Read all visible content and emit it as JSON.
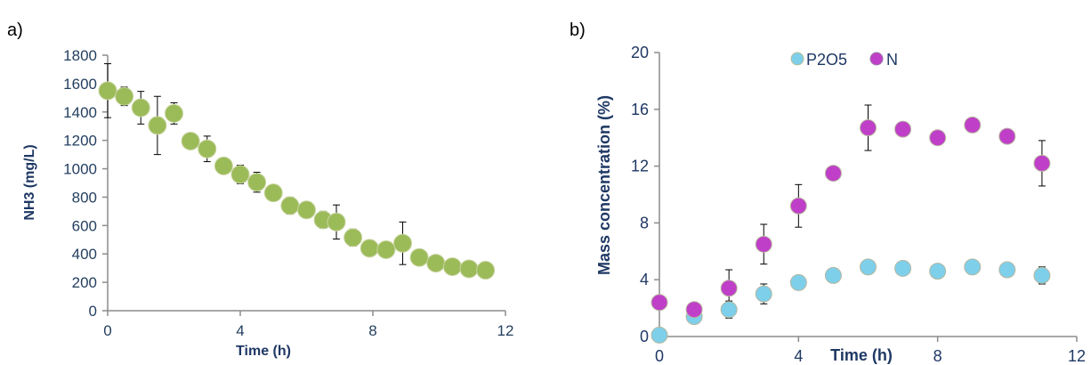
{
  "chart_data": [
    {
      "panel": "a)",
      "type": "scatter",
      "xlabel": "Time (h)",
      "ylabel": "NH3 (mg/L)",
      "xlim": [
        0,
        12
      ],
      "ylim": [
        0,
        1800
      ],
      "xticks": [
        "0",
        "4",
        "8",
        "12"
      ],
      "yticks": [
        "0",
        "200",
        "400",
        "600",
        "800",
        "1000",
        "1200",
        "1400",
        "1600",
        "1800"
      ],
      "grid": false,
      "series": [
        {
          "color": "#9bbb59",
          "points": [
            {
              "x": 0,
              "y": 1550,
              "err": 190
            },
            {
              "x": 0.5,
              "y": 1510,
              "err": 65
            },
            {
              "x": 1,
              "y": 1430,
              "err": 115
            },
            {
              "x": 1.5,
              "y": 1305,
              "err": 205
            },
            {
              "x": 2,
              "y": 1390,
              "err": 75
            },
            {
              "x": 2.5,
              "y": 1195,
              "err": 0
            },
            {
              "x": 3,
              "y": 1140,
              "err": 90
            },
            {
              "x": 3.5,
              "y": 1020,
              "err": 55
            },
            {
              "x": 4,
              "y": 960,
              "err": 65
            },
            {
              "x": 4.5,
              "y": 905,
              "err": 70
            },
            {
              "x": 5,
              "y": 830,
              "err": 35
            },
            {
              "x": 5.5,
              "y": 740,
              "err": 60
            },
            {
              "x": 6,
              "y": 710,
              "err": 0
            },
            {
              "x": 6.5,
              "y": 640,
              "err": 60
            },
            {
              "x": 6.9,
              "y": 625,
              "err": 120
            },
            {
              "x": 7.4,
              "y": 515,
              "err": 60
            },
            {
              "x": 7.9,
              "y": 440,
              "err": 0
            },
            {
              "x": 8.4,
              "y": 430,
              "err": 40
            },
            {
              "x": 8.9,
              "y": 475,
              "err": 150
            },
            {
              "x": 9.4,
              "y": 375,
              "err": 40
            },
            {
              "x": 9.9,
              "y": 335,
              "err": 0
            },
            {
              "x": 10.4,
              "y": 310,
              "err": 0
            },
            {
              "x": 10.9,
              "y": 295,
              "err": 0
            },
            {
              "x": 11.4,
              "y": 285,
              "err": 0
            }
          ]
        }
      ]
    },
    {
      "panel": "b)",
      "type": "scatter",
      "xlabel": "Time (h)",
      "ylabel": "Mass concentration (%)",
      "xlim": [
        0,
        12
      ],
      "ylim": [
        0,
        20
      ],
      "xticks": [
        "0",
        "4",
        "8",
        "12"
      ],
      "yticks": [
        "0",
        "4",
        "8",
        "12",
        "16",
        "20"
      ],
      "grid": false,
      "legend": "top",
      "series": [
        {
          "name": "P2O5",
          "color": "#7ecfea",
          "points": [
            {
              "x": 0,
              "y": 0.1,
              "err": 0
            },
            {
              "x": 1,
              "y": 1.4,
              "err": 0
            },
            {
              "x": 2,
              "y": 1.9,
              "err": 0.6
            },
            {
              "x": 3,
              "y": 3.0,
              "err": 0.7
            },
            {
              "x": 4,
              "y": 3.8,
              "err": 0
            },
            {
              "x": 5,
              "y": 4.3,
              "err": 0
            },
            {
              "x": 6,
              "y": 4.9,
              "err": 0
            },
            {
              "x": 7,
              "y": 4.8,
              "err": 0
            },
            {
              "x": 8,
              "y": 4.6,
              "err": 0
            },
            {
              "x": 9,
              "y": 4.9,
              "err": 0
            },
            {
              "x": 10,
              "y": 4.7,
              "err": 0
            },
            {
              "x": 11,
              "y": 4.3,
              "err": 0.6
            }
          ]
        },
        {
          "name": "N",
          "color": "#c03fc8",
          "points": [
            {
              "x": 0,
              "y": 2.4,
              "err": 0
            },
            {
              "x": 1,
              "y": 1.9,
              "err": 0
            },
            {
              "x": 2,
              "y": 3.4,
              "err": 1.3
            },
            {
              "x": 3,
              "y": 6.5,
              "err": 1.4
            },
            {
              "x": 4,
              "y": 9.2,
              "err": 1.5
            },
            {
              "x": 5,
              "y": 11.5,
              "err": 0
            },
            {
              "x": 6,
              "y": 14.7,
              "err": 1.6
            },
            {
              "x": 7,
              "y": 14.6,
              "err": 0
            },
            {
              "x": 8,
              "y": 14.0,
              "err": 0
            },
            {
              "x": 9,
              "y": 14.9,
              "err": 0
            },
            {
              "x": 10,
              "y": 14.1,
              "err": 0
            },
            {
              "x": 11,
              "y": 12.2,
              "err": 1.6
            }
          ]
        }
      ]
    }
  ]
}
